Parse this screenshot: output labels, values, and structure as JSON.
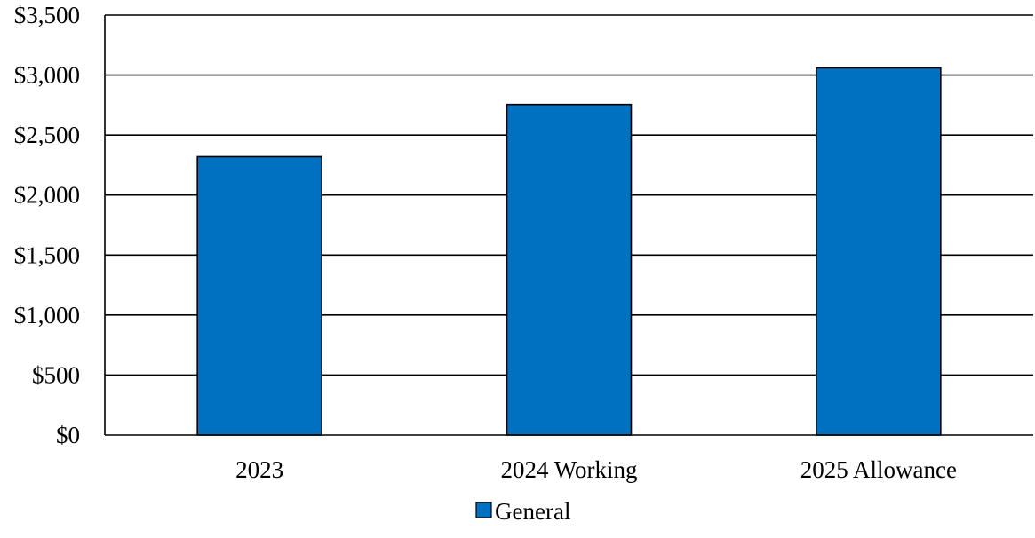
{
  "chart_data": {
    "type": "bar",
    "categories": [
      "2023",
      "2024 Working",
      "2025 Allowance"
    ],
    "series": [
      {
        "name": "General",
        "values": [
          2320,
          2755,
          3060
        ],
        "color": "#0070C0"
      }
    ],
    "ylim": [
      0,
      3500
    ],
    "yticks": [
      0,
      500,
      1000,
      1500,
      2000,
      2500,
      3000,
      3500
    ],
    "ytick_labels": [
      "$0",
      "$500",
      "$1,000",
      "$1,500",
      "$2,000",
      "$2,500",
      "$3,000",
      "$3,500"
    ],
    "grid": true,
    "legend_position": "bottom-center"
  }
}
